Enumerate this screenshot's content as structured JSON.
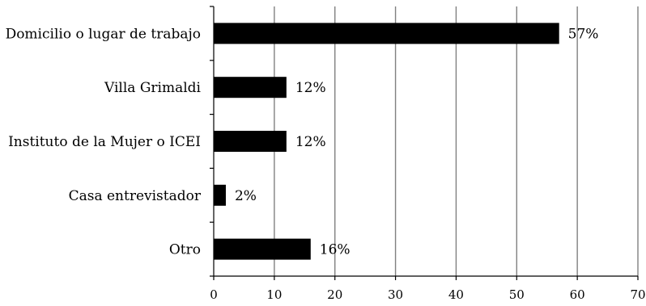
{
  "chart_data": {
    "type": "bar",
    "orientation": "horizontal",
    "categories": [
      "Domicilio o lugar de trabajo",
      "Villa Grimaldi",
      "Instituto de la Mujer o ICEI",
      "Casa entrevistador",
      "Otro"
    ],
    "values": [
      57,
      12,
      12,
      2,
      16
    ],
    "data_labels": [
      "57%",
      "12%",
      "12%",
      "2%",
      "16%"
    ],
    "xlim": [
      0,
      70
    ],
    "xticks": [
      0,
      10,
      20,
      30,
      40,
      50,
      60,
      70
    ],
    "grid": true,
    "bar_color": "#000000",
    "grid_color": "#808080"
  }
}
